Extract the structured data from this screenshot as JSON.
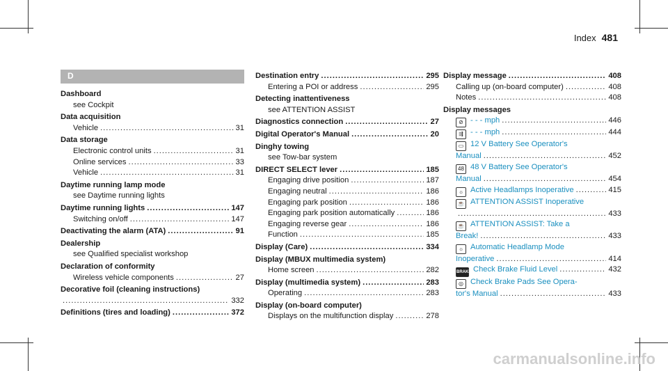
{
  "header": {
    "title": "Index",
    "page": "481"
  },
  "col1": {
    "letter": "D",
    "entries": [
      {
        "head": "Dashboard",
        "subs": [
          {
            "text": "see Cockpit"
          }
        ]
      },
      {
        "head": "Data acquisition",
        "subs": [
          {
            "text": "Vehicle",
            "page": "31"
          }
        ]
      },
      {
        "head": "Data storage",
        "subs": [
          {
            "text": "Electronic control units",
            "page": "31"
          },
          {
            "text": "Online services",
            "page": "33"
          },
          {
            "text": "Vehicle",
            "page": "31"
          }
        ]
      },
      {
        "head": "Daytime running lamp mode",
        "subs": [
          {
            "text": "see Daytime running lights"
          }
        ]
      },
      {
        "head": "Daytime running lights",
        "page": "147",
        "subs": [
          {
            "text": "Switching on/off",
            "page": "147"
          }
        ]
      },
      {
        "head": "Deactivating the alarm (ATA)",
        "page": "91",
        "subs": []
      },
      {
        "head": "Dealership",
        "subs": [
          {
            "text": "see Qualified specialist workshop"
          }
        ]
      },
      {
        "head": "Declaration of conformity",
        "subs": [
          {
            "text": "Wireless vehicle components",
            "page": "27"
          }
        ]
      },
      {
        "head": "Decorative foil (cleaning instructions)",
        "subs": [
          {
            "text": "",
            "page": "332"
          }
        ]
      },
      {
        "head": "Definitions (tires and loading)",
        "page": "372",
        "subs": []
      }
    ]
  },
  "col2": {
    "entries": [
      {
        "head": "Destination entry",
        "page": "295",
        "subs": [
          {
            "text": "Entering a POI or address",
            "page": "295"
          }
        ]
      },
      {
        "head": "Detecting inattentiveness",
        "subs": [
          {
            "text": "see ATTENTION ASSIST"
          }
        ]
      },
      {
        "head": "Diagnostics connection",
        "page": "27",
        "subs": []
      },
      {
        "head": "Digital Operator's Manual",
        "page": "20",
        "subs": []
      },
      {
        "head": "Dinghy towing",
        "subs": [
          {
            "text": "see Tow-bar system"
          }
        ]
      },
      {
        "head": "DIRECT SELECT lever",
        "page": "185",
        "subs": [
          {
            "text": "Engaging drive position",
            "page": "187"
          },
          {
            "text": "Engaging neutral",
            "page": "186"
          },
          {
            "text": "Engaging park position",
            "page": "186"
          },
          {
            "text": "Engaging park position automatically",
            "page": "186"
          },
          {
            "text": "Engaging reverse gear",
            "page": "186"
          },
          {
            "text": "Function",
            "page": "185"
          }
        ]
      },
      {
        "head": "Display (Care)",
        "page": "334",
        "subs": []
      },
      {
        "head": "Display (MBUX multimedia system)",
        "subs": [
          {
            "text": "Home screen",
            "page": "282"
          }
        ]
      },
      {
        "head": "Display (multimedia system)",
        "page": "283",
        "subs": [
          {
            "text": "Operating",
            "page": "283"
          }
        ]
      },
      {
        "head": "Display (on-board computer)",
        "subs": [
          {
            "text": "Displays on the multifunction display",
            "page": "278"
          }
        ]
      }
    ]
  },
  "col3": {
    "entries": [
      {
        "head": "Display message",
        "page": "408",
        "subs": [
          {
            "text": "Calling up (on-board computer)",
            "page": "408"
          },
          {
            "text": "Notes",
            "page": "408"
          }
        ]
      }
    ],
    "messages_head": "Display messages",
    "messages": [
      {
        "icon": "speed-limiter-icon",
        "glyph": "⊘",
        "text": "- - - mph",
        "page": "446"
      },
      {
        "icon": "distance-assist-icon",
        "glyph": "⇶",
        "text": "- - - mph",
        "page": "444"
      },
      {
        "icon": "battery-12v-icon",
        "glyph": "▭",
        "line1": "12 V Battery See Operator's",
        "line2": "Manual",
        "page": "452"
      },
      {
        "icon": "battery-48v-icon",
        "glyph": "48",
        "line1": "48 V Battery See Operator's",
        "line2": "Manual",
        "page": "454"
      },
      {
        "icon": "headlamp-icon",
        "glyph": "☼",
        "text": "Active Headlamps Inoperative",
        "page": "415"
      },
      {
        "icon": "attention-assist-icon",
        "glyph": "☕",
        "line1": "ATTENTION ASSIST Inoperative",
        "line2": "",
        "page": "433"
      },
      {
        "icon": "attention-assist-break-icon",
        "glyph": "☕",
        "line1": "ATTENTION ASSIST: Take a",
        "line2": "Break!",
        "page": "433"
      },
      {
        "icon": "automatic-headlamp-icon",
        "glyph": "☼",
        "line1": "Automatic Headlamp Mode",
        "line2": "Inoperative",
        "page": "414"
      },
      {
        "icon": "brake-icon",
        "glyph": "BRAKE",
        "text": "Check Brake Fluid Level",
        "page": "432"
      },
      {
        "icon": "brake-pads-icon",
        "glyph": "◎",
        "line1": "Check Brake Pads See Opera-",
        "line2": "tor's Manual",
        "page": "433"
      }
    ]
  },
  "watermark": "carmanualsonline.info"
}
